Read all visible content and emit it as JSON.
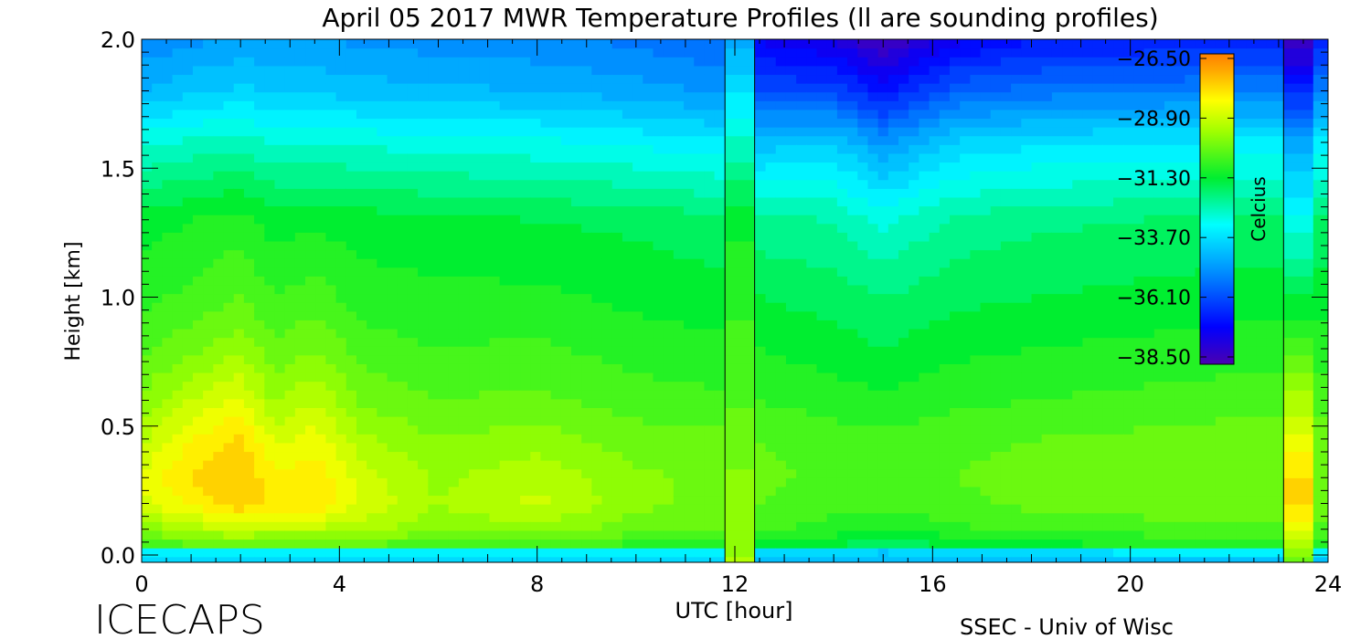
{
  "header": {
    "title": "April 05 2017 MWR Temperature Profiles (ll are sounding profiles)"
  },
  "footer": {
    "logo_text": "ICECAPS",
    "credit": "SSEC - Univ of Wisc"
  },
  "chart_data": {
    "type": "heatmap",
    "title": "April 05 2017 MWR Temperature Profiles (ll are sounding profiles)",
    "xlabel": "UTC [hour]",
    "ylabel": "Height [km]",
    "xlim": [
      0,
      24
    ],
    "ylim": [
      0,
      2
    ],
    "x_ticks": [
      "0",
      "4",
      "8",
      "12",
      "16",
      "20",
      "24"
    ],
    "y_ticks": [
      "0.0",
      "0.5",
      "1.0",
      "1.5",
      "2.0"
    ],
    "colorbar": {
      "label": "Celcius",
      "min": -38.5,
      "max": -26.5,
      "ticks": [
        "-26.50",
        "-28.90",
        "-31.30",
        "-33.70",
        "-36.10",
        "-38.50"
      ],
      "placement": "inside-top-right"
    },
    "sounding_markers_hour": [
      11.8,
      12.4,
      23.1
    ],
    "sounding_profile_columns": [
      {
        "x_range": [
          11.8,
          12.4
        ],
        "heights_km": [
          0,
          0.2,
          0.5,
          1.0,
          1.3,
          1.6,
          2.0
        ],
        "temps_c": [
          -29.5,
          -29.7,
          -30.2,
          -30.8,
          -31.2,
          -32.6,
          -34.5
        ]
      },
      {
        "x_range": [
          23.1,
          23.7
        ],
        "heights_km": [
          0,
          0.1,
          0.25,
          0.5,
          0.8,
          1.2,
          1.6,
          1.8,
          2.0
        ],
        "temps_c": [
          -30.0,
          -28.5,
          -27.6,
          -28.8,
          -30.5,
          -32.5,
          -34.5,
          -36.5,
          -38.3
        ]
      }
    ],
    "heights_km": [
      0,
      0.015,
      0.04,
      0.1,
      0.2,
      0.3,
      0.45,
      0.6,
      0.8,
      1.0,
      1.3,
      1.6,
      1.8,
      2.0
    ],
    "series": [
      {
        "hour": 0.0,
        "temps_c": [
          -33.8,
          -33.0,
          -30.6,
          -29.8,
          -28.8,
          -28.6,
          -29.2,
          -29.8,
          -30.4,
          -30.8,
          -31.3,
          -32.8,
          -34.3,
          -35.0
        ]
      },
      {
        "hour": 1.0,
        "temps_c": [
          -33.8,
          -33.0,
          -30.3,
          -29.4,
          -28.2,
          -27.9,
          -28.3,
          -29.1,
          -30.0,
          -30.6,
          -31.1,
          -32.6,
          -34.0,
          -34.8
        ]
      },
      {
        "hour": 2.0,
        "temps_c": [
          -33.8,
          -33.0,
          -30.2,
          -29.0,
          -27.6,
          -27.5,
          -27.8,
          -28.6,
          -29.6,
          -30.3,
          -30.9,
          -32.5,
          -33.8,
          -34.6
        ]
      },
      {
        "hour": 2.7,
        "temps_c": [
          -33.8,
          -33.0,
          -30.3,
          -29.2,
          -28.1,
          -28.2,
          -28.8,
          -29.6,
          -30.2,
          -30.7,
          -31.3,
          -32.7,
          -34.0,
          -34.7
        ]
      },
      {
        "hour": 3.5,
        "temps_c": [
          -33.8,
          -33.0,
          -30.3,
          -29.2,
          -27.9,
          -28.0,
          -28.5,
          -29.1,
          -29.9,
          -30.5,
          -31.2,
          -32.7,
          -34.0,
          -34.7
        ]
      },
      {
        "hour": 4.5,
        "temps_c": [
          -33.8,
          -33.0,
          -30.3,
          -29.4,
          -28.8,
          -28.9,
          -29.4,
          -30.0,
          -30.5,
          -30.9,
          -31.3,
          -32.8,
          -34.1,
          -34.8
        ]
      },
      {
        "hour": 6.0,
        "temps_c": [
          -33.8,
          -33.2,
          -30.5,
          -29.8,
          -29.5,
          -29.6,
          -29.9,
          -30.3,
          -30.7,
          -31.0,
          -31.4,
          -32.9,
          -34.2,
          -34.9
        ]
      },
      {
        "hour": 8.0,
        "temps_c": [
          -33.8,
          -33.2,
          -30.5,
          -29.7,
          -29.0,
          -29.2,
          -29.7,
          -30.2,
          -30.6,
          -31.0,
          -31.5,
          -33.0,
          -34.3,
          -35.0
        ]
      },
      {
        "hour": 10.0,
        "temps_c": [
          -33.9,
          -33.3,
          -30.8,
          -30.1,
          -29.8,
          -29.8,
          -30.1,
          -30.5,
          -30.9,
          -31.2,
          -31.6,
          -33.2,
          -34.5,
          -35.2
        ]
      },
      {
        "hour": 11.7,
        "temps_c": [
          -33.9,
          -33.3,
          -30.9,
          -30.2,
          -30.0,
          -30.0,
          -30.2,
          -30.6,
          -31.0,
          -31.3,
          -31.8,
          -33.4,
          -34.8,
          -35.5
        ]
      },
      {
        "hour": 12.5,
        "temps_c": [
          -34.0,
          -33.5,
          -31.2,
          -30.6,
          -30.3,
          -30.2,
          -30.3,
          -30.7,
          -31.1,
          -31.5,
          -32.2,
          -34.1,
          -35.9,
          -37.2
        ]
      },
      {
        "hour": 14.0,
        "temps_c": [
          -34.0,
          -33.6,
          -31.4,
          -30.9,
          -30.5,
          -30.4,
          -30.5,
          -30.9,
          -31.3,
          -31.7,
          -32.3,
          -33.9,
          -36.0,
          -37.6
        ]
      },
      {
        "hour": 15.0,
        "temps_c": [
          -34.3,
          -33.8,
          -31.8,
          -31.1,
          -30.6,
          -30.5,
          -30.6,
          -31.0,
          -31.5,
          -31.9,
          -32.8,
          -34.8,
          -36.8,
          -38.4
        ]
      },
      {
        "hour": 16.5,
        "temps_c": [
          -34.1,
          -33.5,
          -31.4,
          -30.8,
          -30.4,
          -30.3,
          -30.4,
          -30.8,
          -31.2,
          -31.6,
          -32.2,
          -33.8,
          -35.6,
          -37.2
        ]
      },
      {
        "hour": 18.0,
        "temps_c": [
          -34.0,
          -33.4,
          -31.2,
          -30.6,
          -30.2,
          -30.1,
          -30.3,
          -30.7,
          -31.1,
          -31.5,
          -32.0,
          -33.6,
          -35.3,
          -36.8
        ]
      },
      {
        "hour": 20.0,
        "temps_c": [
          -34.0,
          -33.3,
          -31.1,
          -30.5,
          -30.1,
          -30.0,
          -30.2,
          -30.6,
          -31.0,
          -31.4,
          -31.9,
          -33.5,
          -35.2,
          -36.7
        ]
      },
      {
        "hour": 22.0,
        "temps_c": [
          -34.0,
          -33.3,
          -31.0,
          -30.4,
          -30.0,
          -29.9,
          -30.1,
          -30.5,
          -30.9,
          -31.3,
          -31.8,
          -33.4,
          -35.1,
          -36.6
        ]
      },
      {
        "hour": 23.1,
        "temps_c": [
          -34.0,
          -33.3,
          -31.0,
          -30.4,
          -30.0,
          -29.9,
          -30.1,
          -30.5,
          -30.9,
          -31.3,
          -31.8,
          -33.4,
          -35.1,
          -36.6
        ]
      }
    ]
  }
}
